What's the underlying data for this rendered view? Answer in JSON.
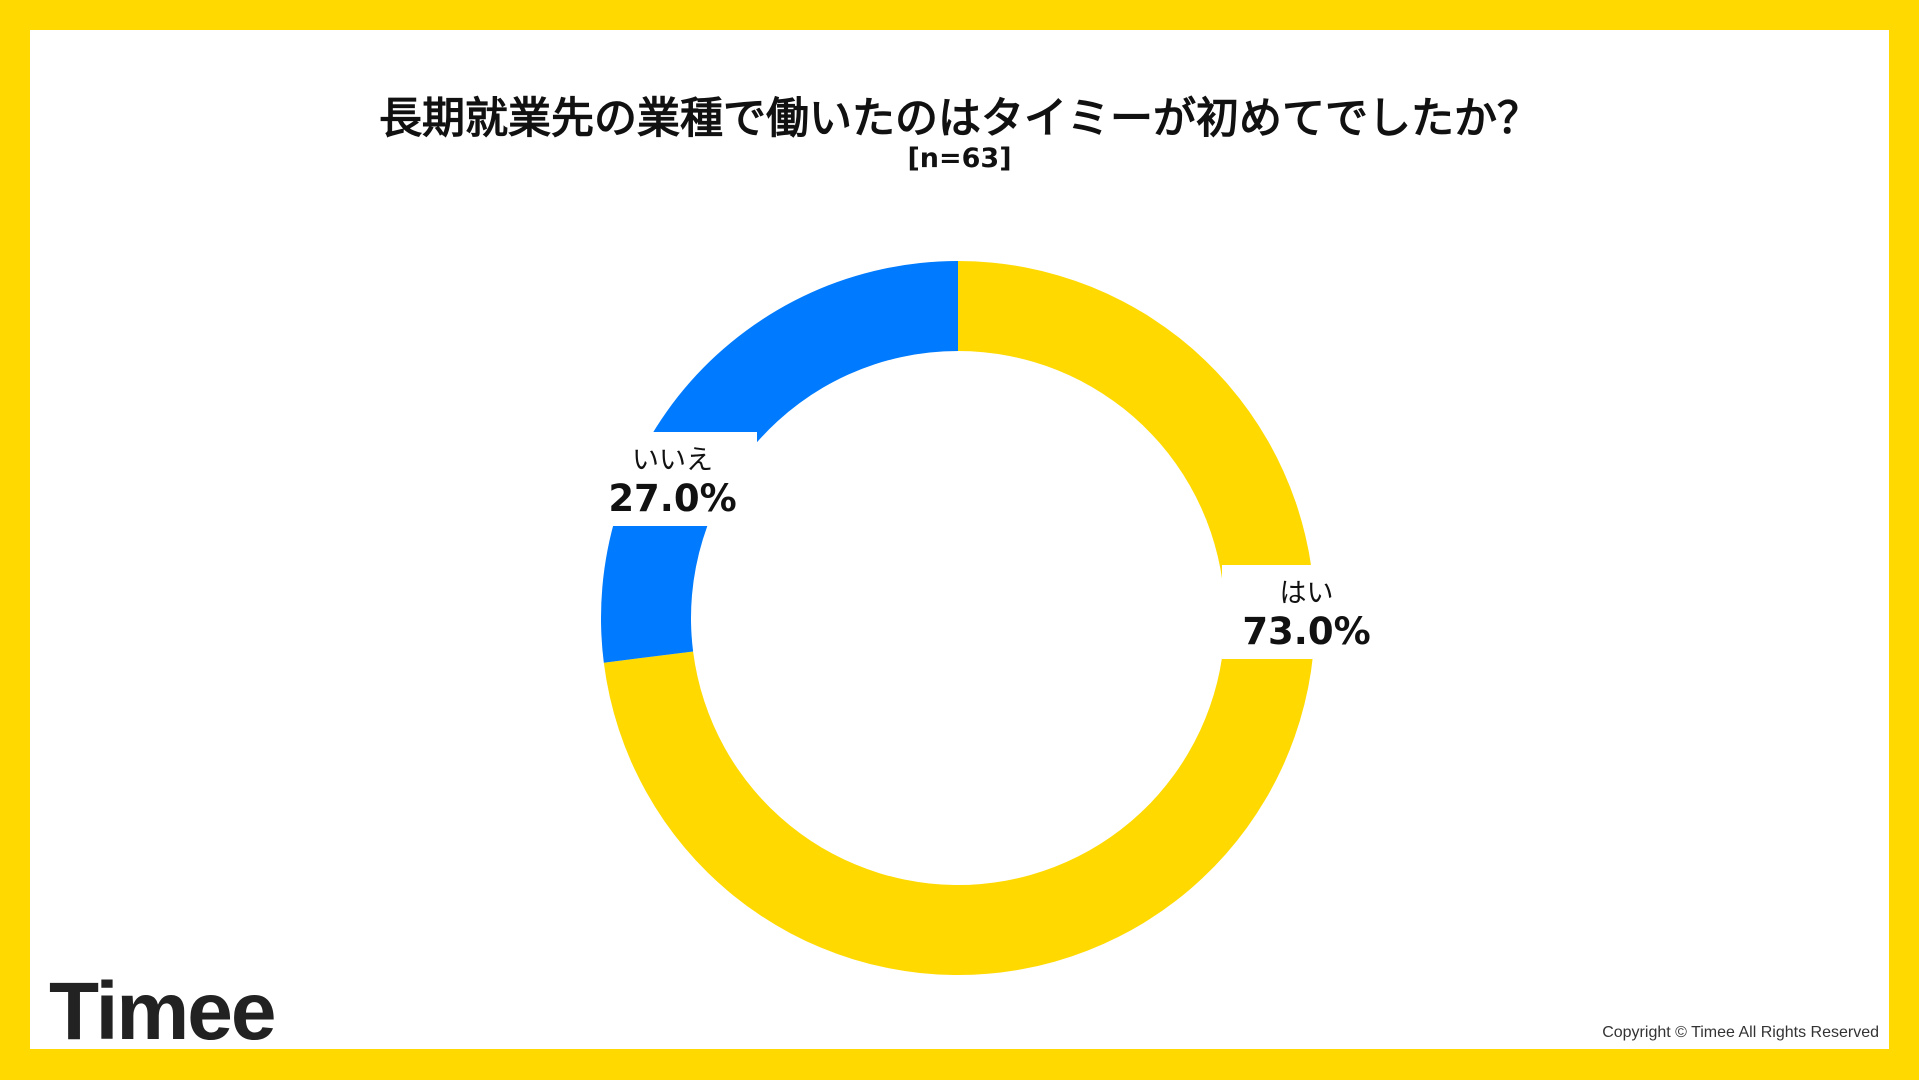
{
  "chart_data": {
    "type": "pie",
    "donut": true,
    "title": "長期就業先の業種で働いたのはタイミーが初めてでしたか？",
    "subtitle": "[n=63]",
    "categories": [
      "はい",
      "いいえ"
    ],
    "values": [
      73.0,
      27.0
    ],
    "value_labels": [
      "73.0%",
      "27.0%"
    ],
    "colors": [
      "#FFD900",
      "#007BFF"
    ],
    "legend": "none"
  },
  "footer": {
    "logo": "Timee",
    "copyright": "Copyright © Timee All Rights Reserved"
  }
}
